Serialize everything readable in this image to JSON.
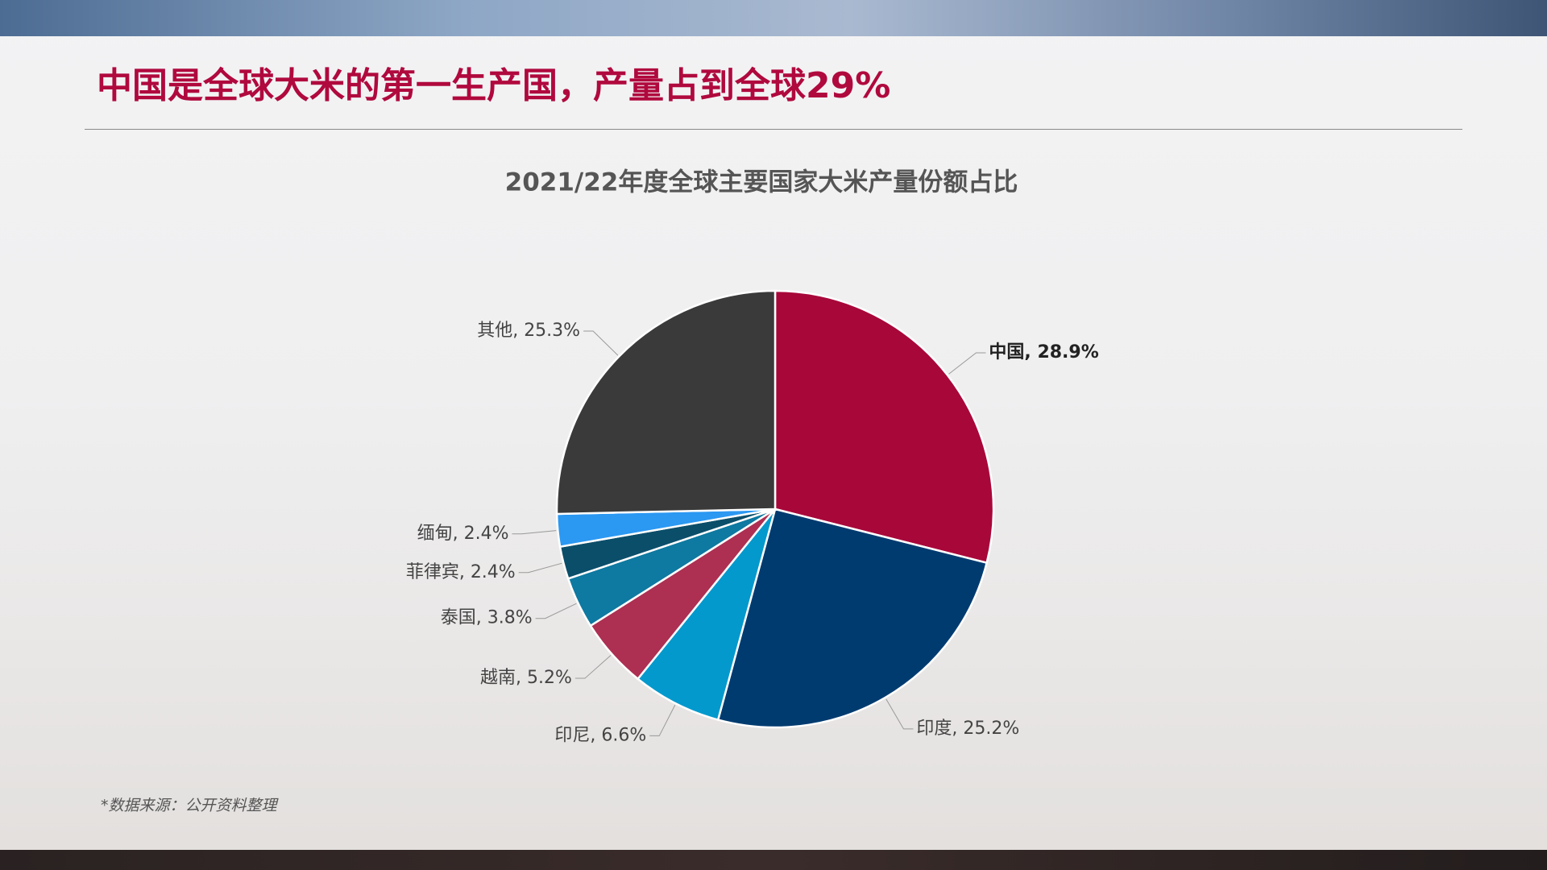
{
  "header": {
    "title": "中国是全球大米的第一生产国，产量占到全球29%"
  },
  "chart_data": {
    "type": "pie",
    "title": "2021/22年度全球主要国家大米产量份额占比",
    "values": [
      28.9,
      25.2,
      6.6,
      5.2,
      3.8,
      2.4,
      2.4,
      25.3
    ],
    "value_labels": [
      "中国, 28.9%",
      "印度, 25.2%",
      "印尼, 6.6%",
      "越南, 5.2%",
      "泰国, 3.8%",
      "菲律宾, 2.4%",
      "缅甸, 2.4%",
      "其他, 25.3%"
    ],
    "colors": [
      "#a8073a",
      "#003b70",
      "#0399cd",
      "#ad2f52",
      "#0e79a1",
      "#0b4e6a",
      "#2b98f2",
      "#3a3a3a"
    ]
  },
  "footer": {
    "note": "*数据来源：公开资料整理"
  }
}
